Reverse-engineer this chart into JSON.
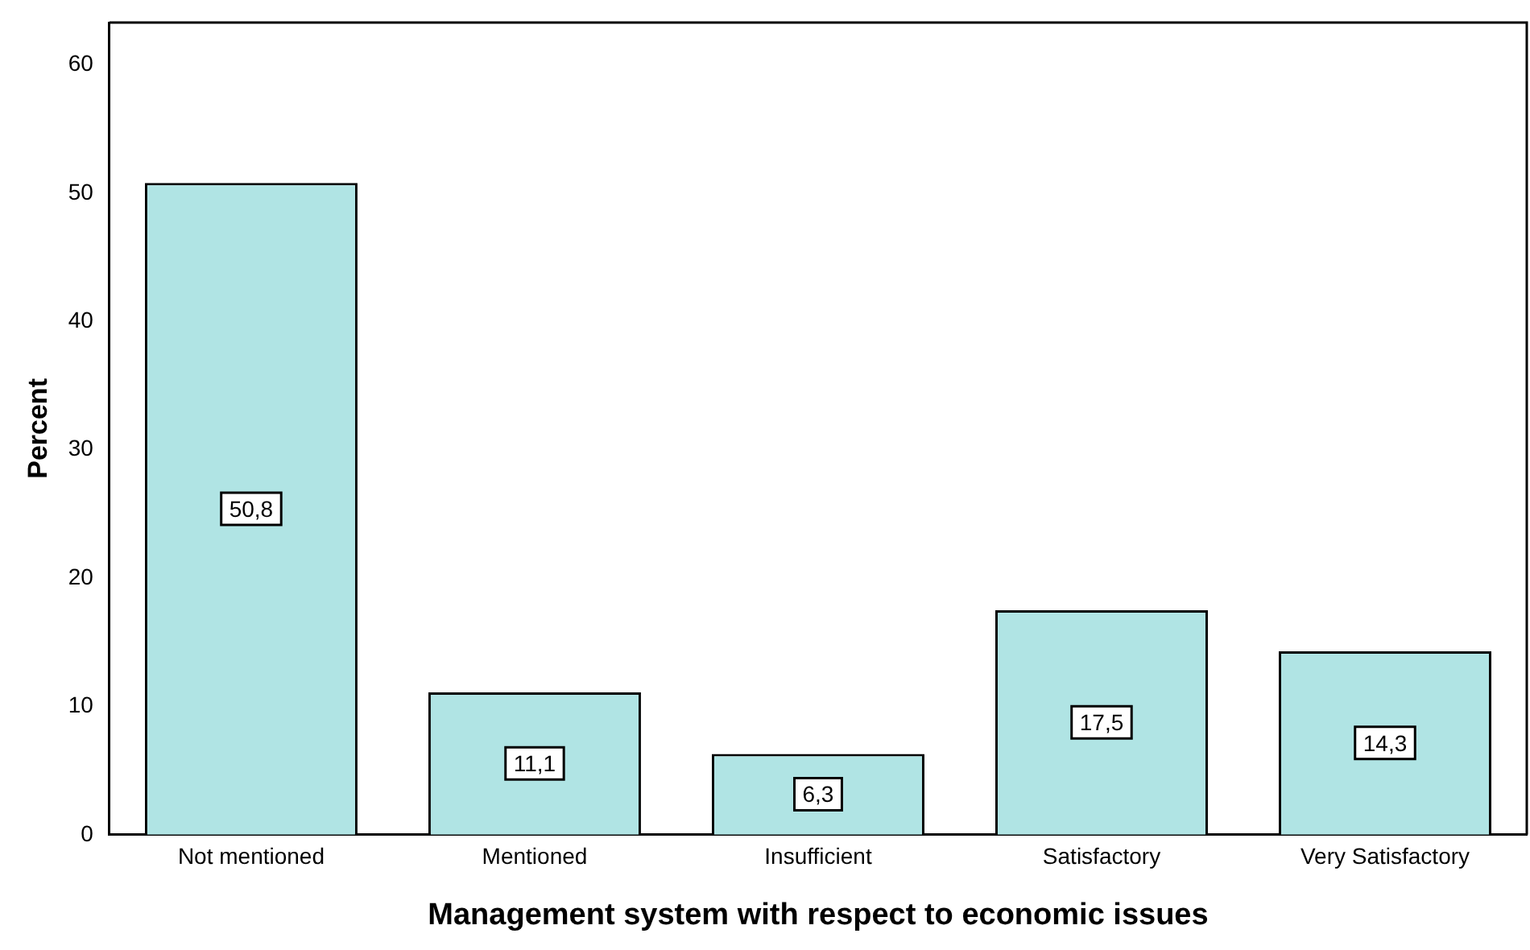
{
  "chart_data": {
    "type": "bar",
    "xlabel": "Management system with respect to economic issues",
    "ylabel": "Percent",
    "categories": [
      "Not mentioned",
      "Mentioned",
      "Insufficient",
      "Satisfactory",
      "Very Satisfactory"
    ],
    "values": [
      50.8,
      11.1,
      6.3,
      17.5,
      14.3
    ],
    "value_labels": [
      "50,8",
      "11,1",
      "6,3",
      "17,5",
      "14,3"
    ],
    "color": "#b0e4e4",
    "ylim": [
      0,
      63.3
    ],
    "yticks": [
      0,
      10,
      20,
      30,
      40,
      50,
      60
    ],
    "grid": false,
    "legend": false
  }
}
